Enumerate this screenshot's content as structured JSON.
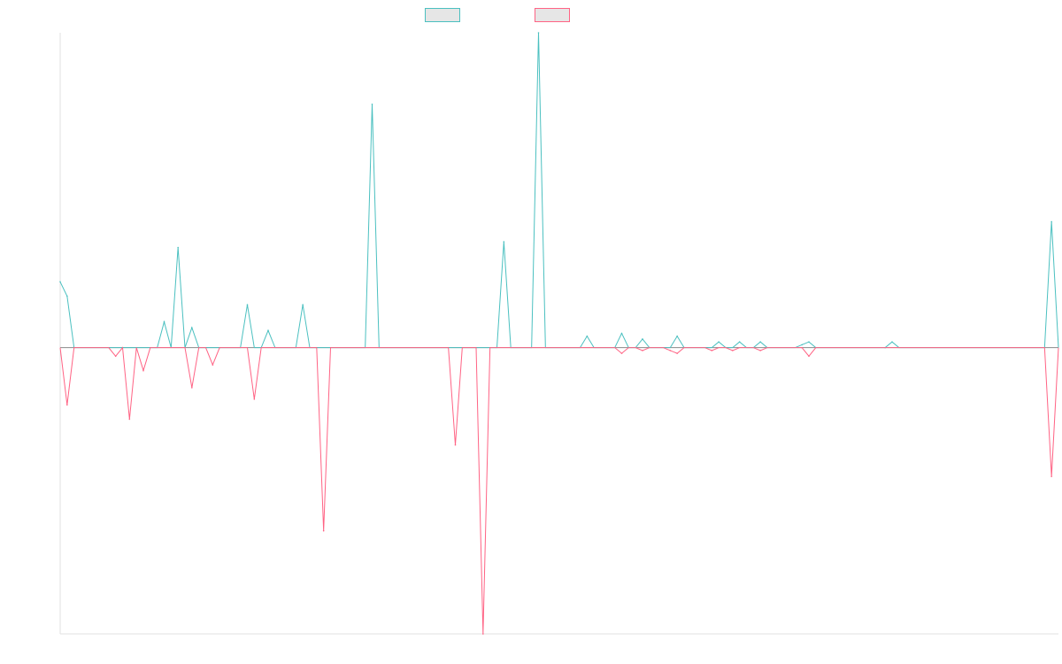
{
  "chart_data": {
    "type": "line",
    "title": "",
    "xlabel": "",
    "ylabel": "",
    "grid": false,
    "legend_position": "top-center",
    "x_count": 145,
    "ylim": [
      -100,
      110
    ],
    "series": [
      {
        "color": "#4bc0c0",
        "points": [
          [
            0,
            23
          ],
          [
            1,
            18
          ],
          [
            15,
            9
          ],
          [
            17,
            35
          ],
          [
            19,
            7
          ],
          [
            27,
            15
          ],
          [
            30,
            6
          ],
          [
            35,
            15
          ],
          [
            45,
            85
          ],
          [
            64,
            37
          ],
          [
            69,
            110
          ],
          [
            76,
            4
          ],
          [
            81,
            5
          ],
          [
            84,
            3
          ],
          [
            89,
            4
          ],
          [
            95,
            2
          ],
          [
            98,
            2
          ],
          [
            101,
            2
          ],
          [
            107,
            1
          ],
          [
            108,
            2
          ],
          [
            119,
            0
          ],
          [
            120,
            2
          ],
          [
            143,
            44
          ]
        ],
        "baseline": 0
      },
      {
        "color": "#ff6384",
        "points": [
          [
            1,
            -20
          ],
          [
            8,
            -3
          ],
          [
            10,
            -25
          ],
          [
            12,
            -8
          ],
          [
            19,
            -14
          ],
          [
            22,
            -6
          ],
          [
            28,
            -18
          ],
          [
            38,
            -64
          ],
          [
            57,
            -34
          ],
          [
            61,
            -100
          ],
          [
            81,
            -2
          ],
          [
            84,
            -1
          ],
          [
            88,
            -1
          ],
          [
            89,
            -2
          ],
          [
            94,
            -1
          ],
          [
            97,
            -1
          ],
          [
            101,
            -1
          ],
          [
            107,
            0
          ],
          [
            108,
            -3
          ],
          [
            143,
            -45
          ]
        ],
        "baseline": 0
      }
    ]
  }
}
